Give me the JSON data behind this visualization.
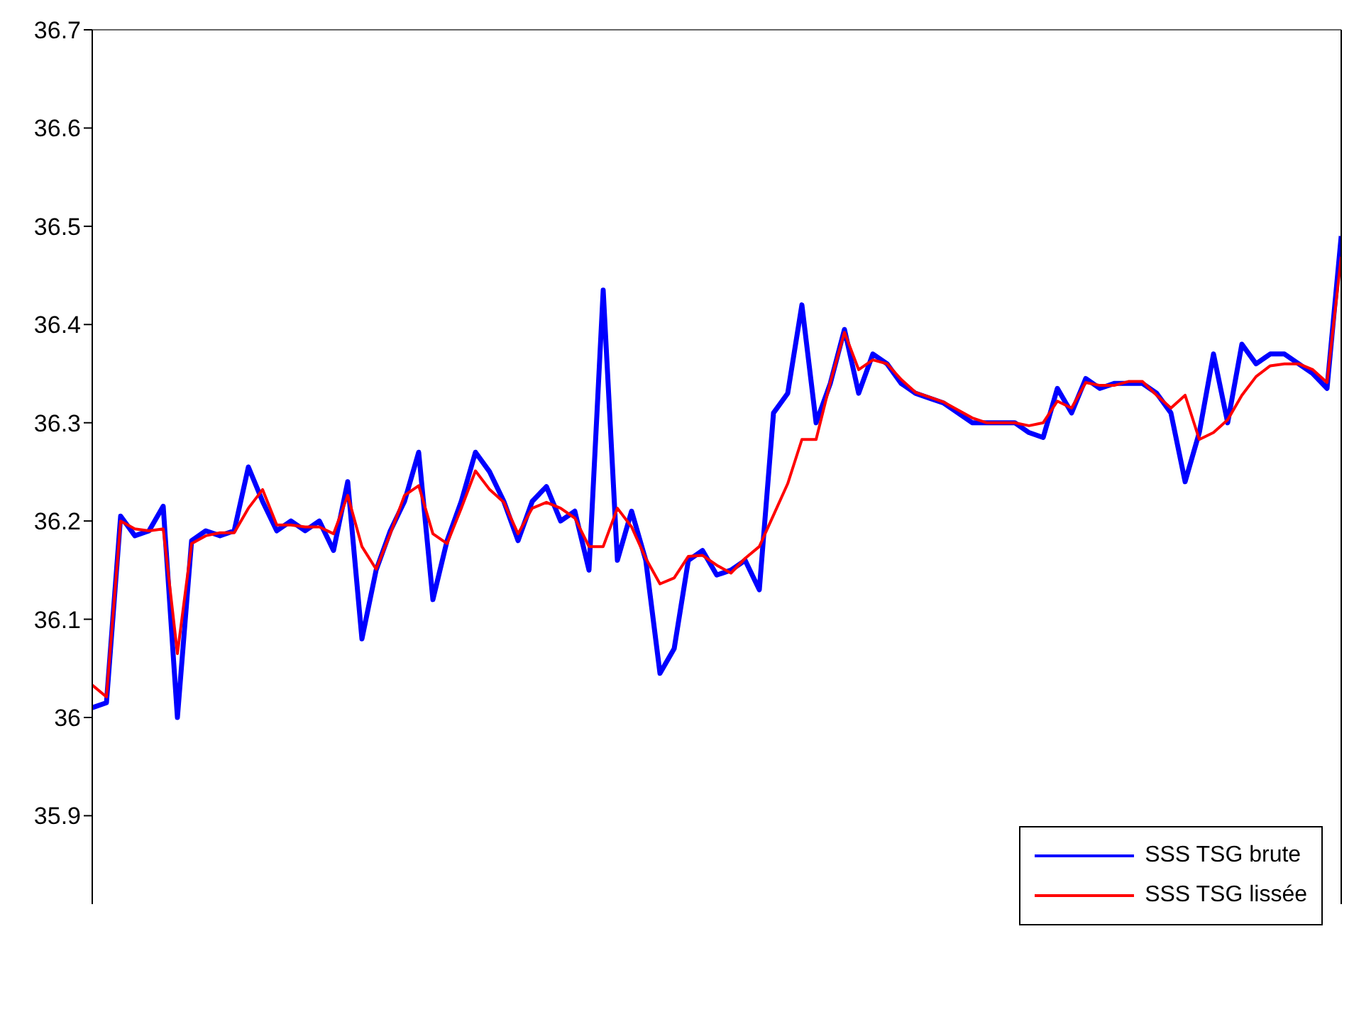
{
  "chart_data": {
    "type": "line",
    "categories": [
      null,
      null,
      null,
      null,
      null,
      null,
      null,
      null,
      null,
      null,
      null,
      null,
      null,
      null,
      null,
      null,
      null,
      null,
      null,
      null,
      null,
      null,
      null,
      null,
      null,
      null,
      null,
      null,
      null,
      null,
      null,
      null,
      null,
      null,
      null,
      null,
      null,
      null,
      null,
      null,
      null,
      null,
      null,
      null,
      null,
      null,
      null,
      null,
      null,
      null,
      null,
      null,
      null,
      null,
      null,
      null,
      null,
      null,
      null,
      null,
      null,
      null,
      null,
      null,
      null,
      null,
      null,
      null,
      null,
      null,
      null,
      null,
      null,
      null,
      null,
      null,
      null,
      null,
      null,
      null,
      null,
      null,
      null,
      null,
      null,
      null,
      null,
      null,
      null
    ],
    "series": [
      {
        "name": "SSS TSG brute",
        "color": "#0000ff",
        "values": [
          36.01,
          36.015,
          36.205,
          36.185,
          36.19,
          36.215,
          36.0,
          36.18,
          36.19,
          36.185,
          36.19,
          36.255,
          36.22,
          36.19,
          36.2,
          36.19,
          36.2,
          36.17,
          36.24,
          36.08,
          36.15,
          36.19,
          36.22,
          36.27,
          36.12,
          36.18,
          36.22,
          36.27,
          36.25,
          36.22,
          36.18,
          36.22,
          36.235,
          36.2,
          36.21,
          36.15,
          36.435,
          36.16,
          36.21,
          36.16,
          36.045,
          36.07,
          36.16,
          36.17,
          36.145,
          36.15,
          36.16,
          36.13,
          36.31,
          36.33,
          36.42,
          36.3,
          36.34,
          36.395,
          36.33,
          36.37,
          36.36,
          36.34,
          36.33,
          36.325,
          36.32,
          36.31,
          36.3,
          36.3,
          36.3,
          36.3,
          36.29,
          36.285,
          36.335,
          36.31,
          36.345,
          36.335,
          36.34,
          36.34,
          36.34,
          36.33,
          36.31,
          36.24,
          36.29,
          36.37,
          36.3,
          36.38,
          36.36,
          36.37,
          36.37,
          36.36,
          36.35,
          36.335,
          36.49
        ]
      },
      {
        "name": "SSS TSG lissée",
        "color": "#ff0000",
        "values": [
          36.033,
          36.021,
          36.2,
          36.192,
          36.19,
          36.192,
          36.065,
          36.177,
          36.185,
          36.188,
          36.188,
          36.213,
          36.232,
          36.196,
          36.196,
          36.194,
          36.194,
          36.187,
          36.226,
          36.174,
          36.151,
          36.187,
          36.226,
          36.236,
          36.187,
          36.177,
          36.213,
          36.251,
          36.232,
          36.219,
          36.187,
          36.213,
          36.219,
          36.213,
          36.203,
          36.174,
          36.174,
          36.213,
          36.194,
          36.162,
          36.136,
          36.142,
          36.164,
          36.165,
          36.155,
          36.147,
          36.162,
          36.174,
          36.206,
          36.238,
          36.283,
          36.283,
          36.341,
          36.392,
          36.354,
          36.364,
          36.36,
          36.344,
          36.331,
          36.326,
          36.321,
          36.313,
          36.305,
          36.3,
          36.3,
          36.3,
          36.297,
          36.3,
          36.322,
          36.315,
          36.341,
          36.338,
          36.338,
          36.342,
          36.342,
          36.328,
          36.315,
          36.328,
          36.283,
          36.29,
          36.303,
          36.328,
          36.347,
          36.358,
          36.36,
          36.36,
          36.354,
          36.341,
          36.469
        ]
      }
    ],
    "ylim": [
      35.81,
      36.7
    ],
    "yticks": [
      35.9,
      36,
      36.1,
      36.2,
      36.3,
      36.4,
      36.5,
      36.6,
      36.7
    ],
    "grid": false,
    "legend": "bottom right",
    "marker": "none",
    "line_style": "solid",
    "tick_labels": "y"
  }
}
